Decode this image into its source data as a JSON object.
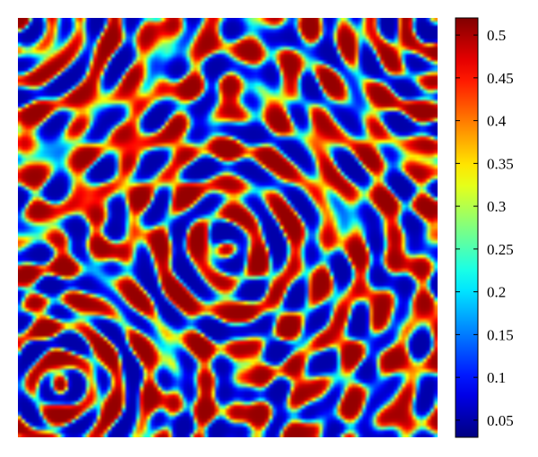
{
  "chart_data": {
    "type": "heatmap",
    "title": "",
    "xlabel": "",
    "ylabel": "",
    "colormap": "jet",
    "value_range": [
      0.03,
      0.52
    ],
    "colorbar": {
      "placement": "right",
      "ticks": [
        0.05,
        0.1,
        0.15,
        0.2,
        0.25,
        0.3,
        0.35,
        0.4,
        0.45,
        0.5
      ],
      "tick_labels": [
        "0.05",
        "0.1",
        "0.15",
        "0.2",
        "0.25",
        "0.3",
        "0.35",
        "0.4",
        "0.45",
        "0.5"
      ]
    },
    "axes_visible": false,
    "grid": false,
    "pattern": "labyrinthine stripe (Turing) pattern alternating between low values (~0.05, dark blue) and high values (~0.45-0.52, red)"
  }
}
